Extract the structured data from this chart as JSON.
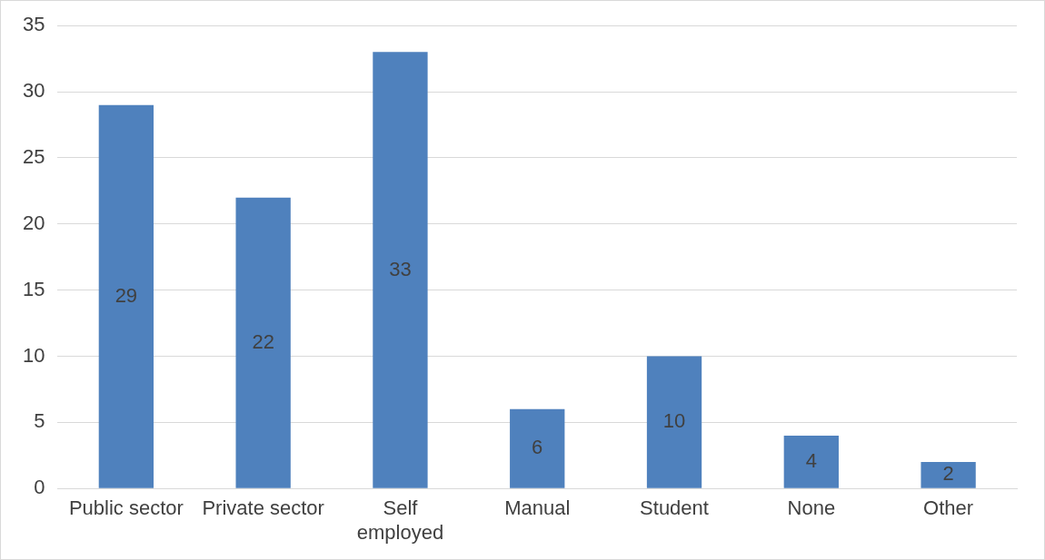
{
  "chart_data": {
    "type": "bar",
    "categories": [
      "Public sector",
      "Private sector",
      "Self employed",
      "Manual",
      "Student",
      "None",
      "Other"
    ],
    "values": [
      29,
      22,
      33,
      6,
      10,
      4,
      2
    ],
    "color": "#4f81bd",
    "ylim": [
      0,
      35
    ],
    "yticks": [
      0,
      5,
      10,
      15,
      20,
      25,
      30,
      35
    ],
    "grid": "y",
    "legend": false,
    "data_labels": true
  }
}
